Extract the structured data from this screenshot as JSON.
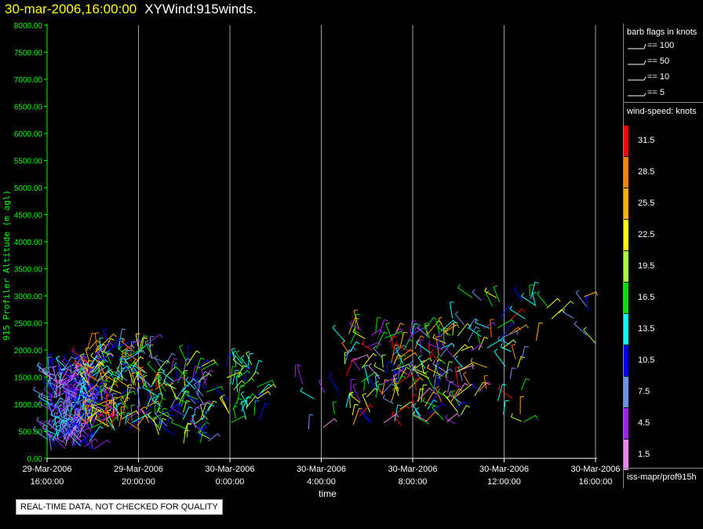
{
  "header": {
    "datetime": "30-mar-2006,16:00:00",
    "product": "XYWind:915winds."
  },
  "legend": {
    "barb_title": "barb flags in knots",
    "barb_flags": [
      {
        "label": "== 100"
      },
      {
        "label": "== 50"
      },
      {
        "label": "== 10"
      },
      {
        "label": "== 5"
      }
    ],
    "speed_title": "wind-speed: knots",
    "colorbar": [
      {
        "label": "31.5",
        "color": "#ff0000"
      },
      {
        "label": "28.5",
        "color": "#ff8000"
      },
      {
        "label": "25.5",
        "color": "#ffb000"
      },
      {
        "label": "22.5",
        "color": "#ffff00"
      },
      {
        "label": "19.5",
        "color": "#a8ff3c"
      },
      {
        "label": "16.5",
        "color": "#00e000"
      },
      {
        "label": "13.5",
        "color": "#00ffff"
      },
      {
        "label": "10.5",
        "color": "#0000ff"
      },
      {
        "label": "7.5",
        "color": "#6495ed"
      },
      {
        "label": "4.5",
        "color": "#a020f0"
      },
      {
        "label": "1.5",
        "color": "#ee82ee"
      }
    ],
    "source": "iss-mapr/prof915h"
  },
  "note": "REAL-TIME DATA, NOT CHECKED FOR QUALITY",
  "chart_data": {
    "type": "scatter",
    "title": "",
    "xlabel": "time",
    "ylabel": "915 Profiler Altitude (m agl)",
    "ylim": [
      0,
      8000
    ],
    "xlim": [
      "29-Mar-2006 16:00:00",
      "30-Mar-2006 16:00:00"
    ],
    "grid": "vertical lines at x ticks",
    "x_ticks": [
      {
        "hours": 0,
        "line1": "29-Mar-2006",
        "line2": "16:00:00"
      },
      {
        "hours": 4,
        "line1": "29-Mar-2006",
        "line2": "20:00:00"
      },
      {
        "hours": 8,
        "line1": "30-Mar-2006",
        "line2": "0:00:00"
      },
      {
        "hours": 12,
        "line1": "30-Mar-2006",
        "line2": "4:00:00"
      },
      {
        "hours": 16,
        "line1": "30-Mar-2006",
        "line2": "8:00:00"
      },
      {
        "hours": 20,
        "line1": "30-Mar-2006",
        "line2": "12:00:00"
      },
      {
        "hours": 24,
        "line1": "30-Mar-2006",
        "line2": "16:00:00"
      }
    ],
    "y_ticks": [
      "0.00",
      "500.00",
      "1000.00",
      "1500.00",
      "2000.00",
      "2500.00",
      "3000.00",
      "3500.00",
      "4000.00",
      "4500.00",
      "5000.00",
      "5500.00",
      "6000.00",
      "6500.00",
      "7000.00",
      "7500.00",
      "8000.00"
    ],
    "barb_clusters": [
      {
        "hours": [
          0,
          2.1
        ],
        "alt": [
          150,
          1700
        ],
        "n": 260,
        "speed": [
          1.5,
          13.5
        ]
      },
      {
        "hours": [
          1.6,
          4.8
        ],
        "alt": [
          500,
          2100
        ],
        "n": 190,
        "speed": [
          4.5,
          31.5
        ]
      },
      {
        "hours": [
          4.8,
          7.2
        ],
        "alt": [
          250,
          1800
        ],
        "n": 85,
        "speed": [
          4.5,
          22.5
        ]
      },
      {
        "hours": [
          7.8,
          9.3
        ],
        "alt": [
          600,
          1800
        ],
        "n": 40,
        "speed": [
          10.5,
          22.5
        ]
      },
      {
        "hours": [
          10.8,
          13.0
        ],
        "alt": [
          500,
          1500
        ],
        "n": 8,
        "speed": [
          1.5,
          16.5
        ]
      },
      {
        "hours": [
          13.0,
          18.2
        ],
        "alt": [
          600,
          2400
        ],
        "n": 165,
        "speed": [
          1.5,
          31.5
        ]
      },
      {
        "hours": [
          17.2,
          21.0
        ],
        "alt": [
          600,
          2600
        ],
        "n": 40,
        "speed": [
          4.5,
          31.5
        ]
      },
      {
        "hours": [
          18.4,
          24.0
        ],
        "alt": [
          1900,
          3000
        ],
        "n": 30,
        "speed": [
          4.5,
          28.5
        ]
      }
    ]
  }
}
